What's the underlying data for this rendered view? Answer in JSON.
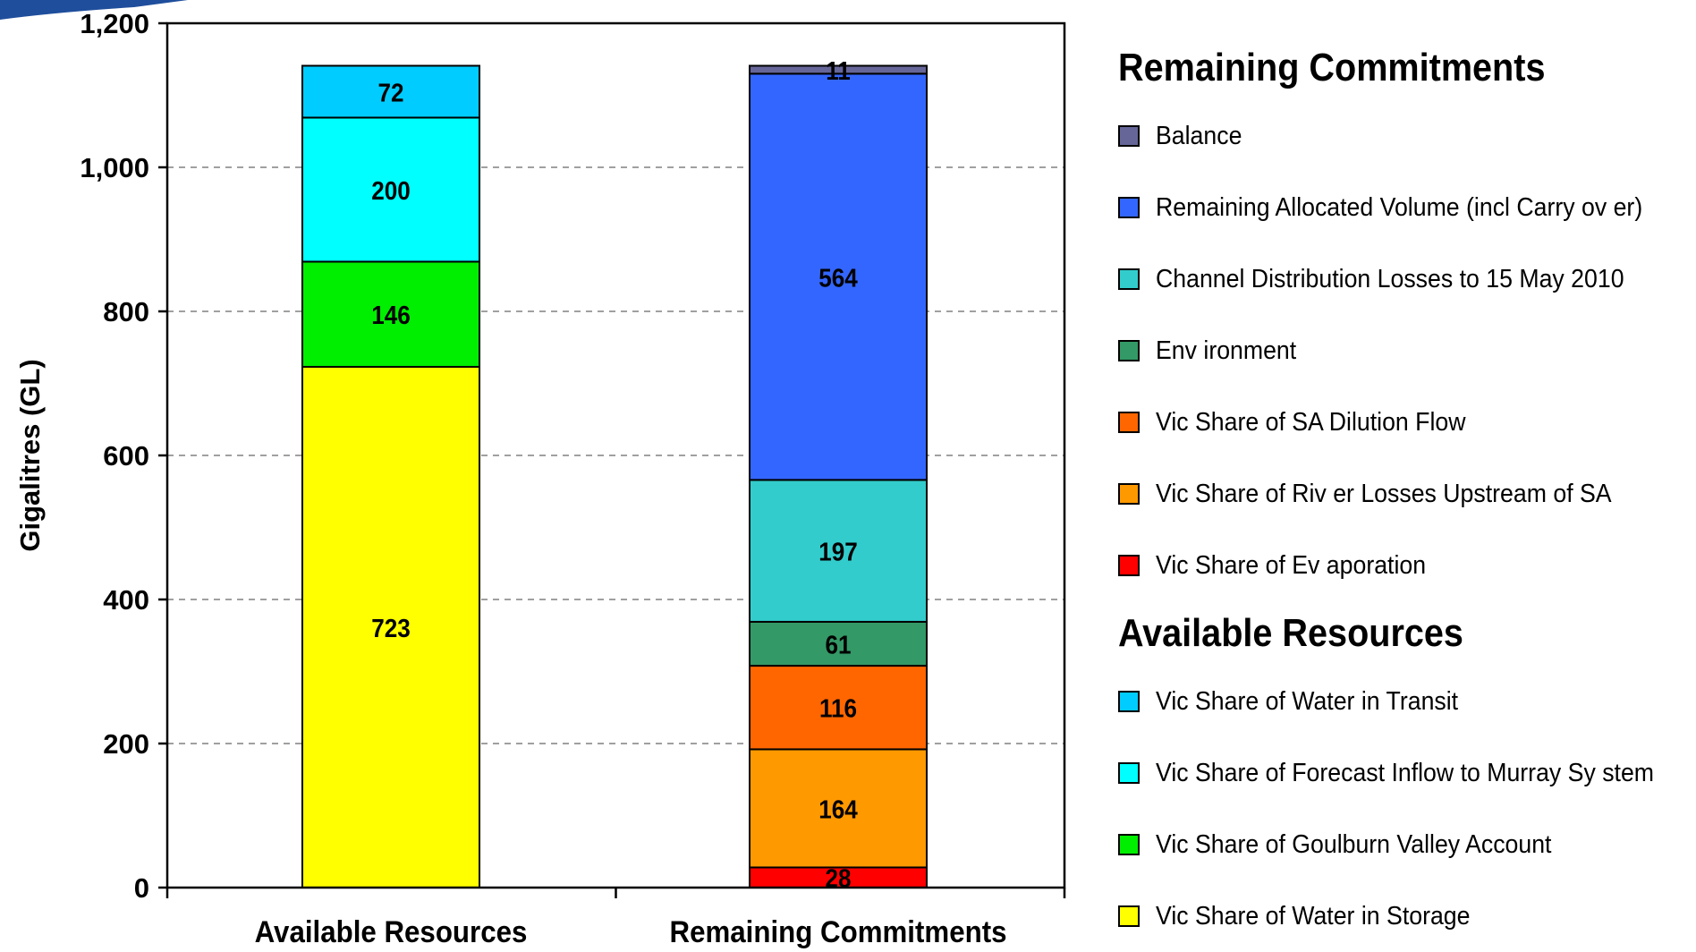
{
  "chart_data": {
    "type": "bar",
    "stacked": true,
    "ylabel": "Gigalitres (GL)",
    "xlabel": "",
    "ylim": [
      0,
      1200
    ],
    "yticks": [
      0,
      200,
      400,
      600,
      800,
      1000,
      1200
    ],
    "ytick_labels": [
      "0",
      "200",
      "400",
      "600",
      "800",
      "1,000",
      "1,200"
    ],
    "grid": "horizontal dashed",
    "legend_position": "right",
    "categories": [
      "Available Resources",
      "Remaining Commitments"
    ],
    "series": [
      {
        "name": "Vic Share of Water in Storage",
        "group": "Available Resources",
        "color": "#ffff00",
        "values": [
          723,
          0
        ],
        "labels": [
          "723",
          ""
        ]
      },
      {
        "name": "Vic Share of Goulburn Valley  Account",
        "group": "Available Resources",
        "color": "#00ee00",
        "values": [
          146,
          0
        ],
        "labels": [
          "146",
          ""
        ]
      },
      {
        "name": "Vic Share of Forecast Inflow  to Murray  Sy stem",
        "group": "Available Resources",
        "color": "#00ffff",
        "values": [
          200,
          0
        ],
        "labels": [
          "200",
          ""
        ]
      },
      {
        "name": "Vic Share of Water in Transit",
        "group": "Available Resources",
        "color": "#00ccff",
        "values": [
          72,
          0
        ],
        "labels": [
          "72",
          ""
        ]
      },
      {
        "name": "Vic Share of Ev aporation",
        "group": "Remaining Commitments",
        "color": "#ff0000",
        "values": [
          0,
          28
        ],
        "labels": [
          "",
          "28"
        ]
      },
      {
        "name": "Vic Share of Riv er Losses Upstream of SA",
        "group": "Remaining Commitments",
        "color": "#ff9900",
        "values": [
          0,
          164
        ],
        "labels": [
          "",
          "164"
        ]
      },
      {
        "name": "Vic Share of SA Dilution Flow",
        "group": "Remaining Commitments",
        "color": "#ff6600",
        "values": [
          0,
          116
        ],
        "labels": [
          "",
          "116"
        ]
      },
      {
        "name": "Env ironment",
        "group": "Remaining Commitments",
        "color": "#339966",
        "values": [
          0,
          61
        ],
        "labels": [
          "",
          "61"
        ]
      },
      {
        "name": "Channel Distribution Losses to 15 May  2010",
        "group": "Remaining Commitments",
        "color": "#33cccc",
        "values": [
          0,
          197
        ],
        "labels": [
          "",
          "197"
        ]
      },
      {
        "name": "Remaining Allocated Volume (incl Carry ov er)",
        "group": "Remaining Commitments",
        "color": "#3366ff",
        "values": [
          0,
          564
        ],
        "labels": [
          "",
          "564"
        ]
      },
      {
        "name": "Balance",
        "group": "Remaining Commitments",
        "color": "#666699",
        "values": [
          0,
          11
        ],
        "labels": [
          "",
          "11"
        ]
      }
    ]
  },
  "legend": {
    "groups": [
      {
        "heading": "Remaining Commitments",
        "items": [
          {
            "label": "Balance",
            "color": "#666699"
          },
          {
            "label": "Remaining Allocated Volume (incl Carry ov er)",
            "color": "#3366ff"
          },
          {
            "label": "Channel Distribution Losses to 15 May  2010",
            "color": "#33cccc"
          },
          {
            "label": "Env ironment",
            "color": "#339966"
          },
          {
            "label": "Vic Share of SA Dilution Flow",
            "color": "#ff6600"
          },
          {
            "label": "Vic Share of Riv er Losses Upstream of SA",
            "color": "#ff9900"
          },
          {
            "label": "Vic Share of Ev aporation",
            "color": "#ff0000"
          }
        ]
      },
      {
        "heading": "Available Resources",
        "items": [
          {
            "label": "Vic Share of Water in Transit",
            "color": "#00ccff"
          },
          {
            "label": "Vic Share of Forecast Inflow  to Murray  Sy stem",
            "color": "#00ffff"
          },
          {
            "label": "Vic Share of Goulburn Valley  Account",
            "color": "#00ee00"
          },
          {
            "label": "Vic Share of Water in Storage",
            "color": "#ffff00"
          }
        ]
      }
    ]
  },
  "colors": {
    "logo": "#1f4e9c",
    "axis": "#000000",
    "grid": "#808080"
  },
  "icons": {
    "corner_logo": "blue-swoosh-logo"
  }
}
